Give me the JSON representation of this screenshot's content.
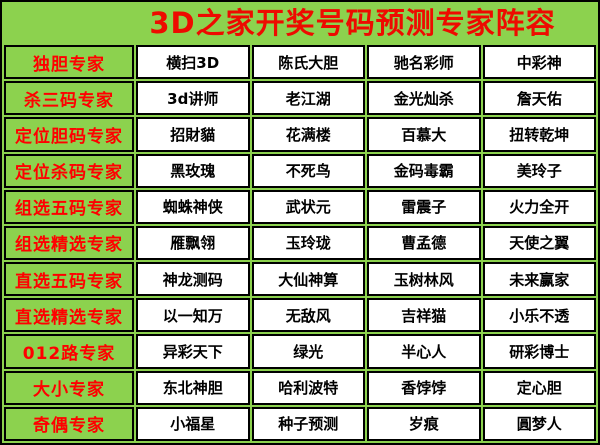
{
  "title": "3D之家开奖号码预测专家阵容",
  "colors": {
    "background_green": "#8CD24E",
    "title_red": "#EE0B00",
    "category_red": "#FF0000",
    "cell_background": "#FFFFFF",
    "cell_text": "#000000",
    "border": "#000000"
  },
  "table": {
    "rows": [
      {
        "category": "独胆专家",
        "experts": [
          "横扫3D",
          "陈氏大胆",
          "驰名彩师",
          "中彩神"
        ]
      },
      {
        "category": "杀三码专家",
        "experts": [
          "3d讲师",
          "老江湖",
          "金光灿杀",
          "詹天佑"
        ]
      },
      {
        "category": "定位胆码专家",
        "experts": [
          "招財貓",
          "花满楼",
          "百慕大",
          "扭转乾坤"
        ]
      },
      {
        "category": "定位杀码专家",
        "experts": [
          "黑玫瑰",
          "不死鸟",
          "金码毒霸",
          "美玲子"
        ]
      },
      {
        "category": "组选五码专家",
        "experts": [
          "蜘蛛神侠",
          "武状元",
          "雷震子",
          "火力全开"
        ]
      },
      {
        "category": "组选精选专家",
        "experts": [
          "雁飘翎",
          "玉玲珑",
          "曹孟德",
          "天使之翼"
        ]
      },
      {
        "category": "直选五码专家",
        "experts": [
          "神龙测码",
          "大仙神算",
          "玉树林风",
          "未来赢家"
        ]
      },
      {
        "category": "直选精选专家",
        "experts": [
          "以一知万",
          "无敌风",
          "吉祥猫",
          "小乐不透"
        ]
      },
      {
        "category": "012路专家",
        "experts": [
          "异彩天下",
          "绿光",
          "半心人",
          "研彩博士"
        ]
      },
      {
        "category": "大小专家",
        "experts": [
          "东北神胆",
          "哈利波特",
          "香饽饽",
          "定心胆"
        ]
      },
      {
        "category": "奇偶专家",
        "experts": [
          "小福星",
          "种子预测",
          "岁痕",
          "圓梦人"
        ]
      }
    ]
  }
}
